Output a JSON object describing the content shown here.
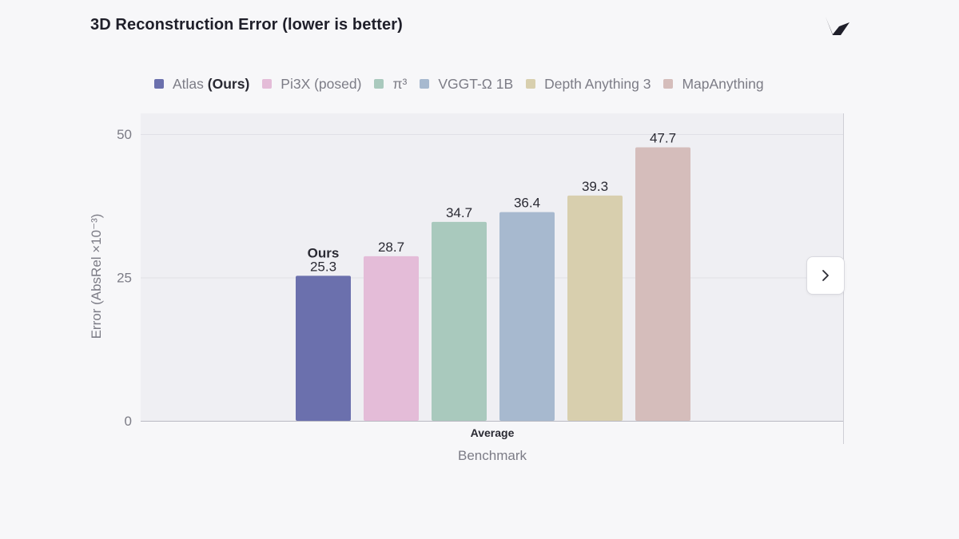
{
  "header": {
    "title": "3D Reconstruction Error (lower is better)"
  },
  "icons": {
    "logo": "brand-logo-icon",
    "next": "chevron-right-icon"
  },
  "legend": [
    {
      "prefix": "Atlas ",
      "strong": "(Ours)",
      "color": "#6b70ad"
    },
    {
      "prefix": "Pi3X (posed)",
      "strong": "",
      "color": "#e4bcd8"
    },
    {
      "prefix": "π³",
      "strong": "",
      "color": "#a9c9bd"
    },
    {
      "prefix": "VGGT-Ω 1B",
      "strong": "",
      "color": "#a7b9cf"
    },
    {
      "prefix": "Depth Anything 3",
      "strong": "",
      "color": "#d8cfae"
    },
    {
      "prefix": "MapAnything",
      "strong": "",
      "color": "#d5bdbb"
    }
  ],
  "chart_data": {
    "type": "bar",
    "categories": [
      "Average"
    ],
    "xlabel": "Benchmark",
    "ylabel": "Error (AbsRel ×10⁻³)",
    "ylim": [
      0,
      50
    ],
    "yticks": [
      0,
      25,
      50
    ],
    "grid": true,
    "legend_position": "top",
    "series": [
      {
        "name": "Atlas (Ours)",
        "values": [
          25.3
        ],
        "label": "25.3",
        "annotation": "Ours",
        "color": "#6b70ad"
      },
      {
        "name": "Pi3X (posed)",
        "values": [
          28.7
        ],
        "label": "28.7",
        "color": "#e4bcd8"
      },
      {
        "name": "π³",
        "values": [
          34.7
        ],
        "label": "34.7",
        "color": "#a9c9bd"
      },
      {
        "name": "VGGT-Ω 1B",
        "values": [
          36.4
        ],
        "label": "36.4",
        "color": "#a7b9cf"
      },
      {
        "name": "Depth Anything 3",
        "values": [
          39.3
        ],
        "label": "39.3",
        "color": "#d8cfae"
      },
      {
        "name": "MapAnything",
        "values": [
          47.7
        ],
        "label": "47.7",
        "color": "#d5bdbb"
      }
    ]
  }
}
